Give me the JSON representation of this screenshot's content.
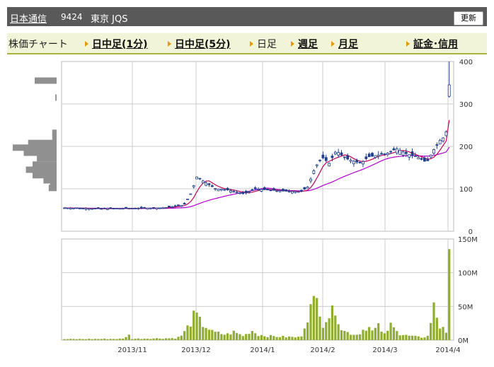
{
  "header": {
    "stock_name": "日本通信",
    "stock_code": "9424",
    "market": "東京 JQS",
    "refresh_label": "更新"
  },
  "nav": {
    "title": "株価チャート",
    "items": [
      {
        "label": "日中足(1分)",
        "link": true
      },
      {
        "label": "日中足(5分)",
        "link": true
      },
      {
        "label": "日足",
        "link": false
      },
      {
        "label": "週足",
        "link": true
      },
      {
        "label": "月足",
        "link": true
      },
      {
        "label": "証金･信用",
        "link": true
      }
    ]
  },
  "colors": {
    "up_candle": "#ffffff",
    "down_candle": "#1f3f8f",
    "ma_short": "#c0005a",
    "ma_long": "#b400d0",
    "volume_bar": "#8fad2e",
    "price_profile": "#909090",
    "grid": "#cccccc",
    "header_bg": "#595959",
    "nav_bg": "#f1f4d7",
    "nav_border": "#a8b23c"
  },
  "chart_data": [
    {
      "type": "candlestick",
      "ylim": [
        0,
        400
      ],
      "y_ticks": [
        "400",
        "300",
        "200",
        "100",
        "0"
      ],
      "x_ticks": [
        "2013/11",
        "2013/12",
        "2014/1",
        "2014/2",
        "2014/3",
        "2014/4"
      ],
      "price_profile": [
        {
          "price": 355,
          "weight": 0.5
        },
        {
          "price": 315,
          "weight": 0.03
        },
        {
          "price": 232,
          "weight": 0.1
        },
        {
          "price": 222,
          "weight": 0.1
        },
        {
          "price": 208,
          "weight": 0.65
        },
        {
          "price": 197,
          "weight": 1.0
        },
        {
          "price": 185,
          "weight": 0.75
        },
        {
          "price": 172,
          "weight": 0.45
        },
        {
          "price": 157,
          "weight": 0.55
        },
        {
          "price": 145,
          "weight": 0.7
        },
        {
          "price": 132,
          "weight": 0.55
        },
        {
          "price": 120,
          "weight": 0.3
        },
        {
          "price": 112,
          "weight": 0.15
        },
        {
          "price": 102,
          "weight": 0.18
        }
      ]
    },
    {
      "type": "bar",
      "ylim": [
        0,
        150
      ],
      "y_ticks": [
        "150M",
        "100M",
        "50M",
        "0M"
      ]
    }
  ]
}
